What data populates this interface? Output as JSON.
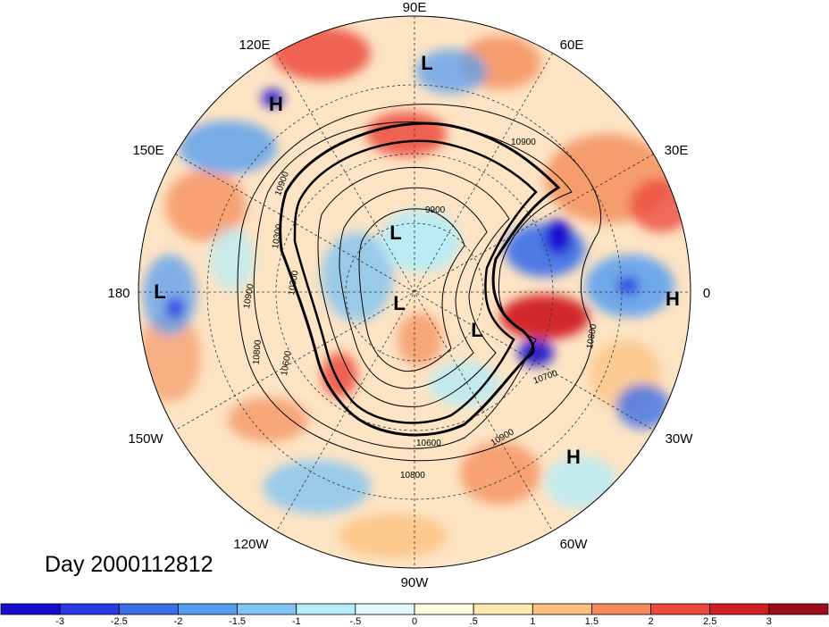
{
  "date_label": "Day 2000112812",
  "longitude_labels": [
    {
      "text": "90E",
      "lon": 90
    },
    {
      "text": "60E",
      "lon": 60
    },
    {
      "text": "30E",
      "lon": 30
    },
    {
      "text": "0",
      "lon": 0
    },
    {
      "text": "30W",
      "lon": -30
    },
    {
      "text": "60W",
      "lon": -60
    },
    {
      "text": "90W",
      "lon": -90
    },
    {
      "text": "120W",
      "lon": -120
    },
    {
      "text": "150W",
      "lon": -150
    },
    {
      "text": "180",
      "lon": 180
    },
    {
      "text": "150E",
      "lon": 150
    },
    {
      "text": "120E",
      "lon": 120
    }
  ],
  "pressure_centers": [
    {
      "type": "L",
      "text": "L",
      "where": "north Siberia"
    },
    {
      "type": "H",
      "text": "H",
      "where": "east Asia"
    },
    {
      "type": "L",
      "text": "L",
      "where": "dateline"
    },
    {
      "type": "L",
      "text": "L",
      "where": "east Siberian Arctic"
    },
    {
      "type": "L",
      "text": "L",
      "where": "pole"
    },
    {
      "type": "L",
      "text": "L",
      "where": "Greenland"
    },
    {
      "type": "H",
      "text": "H",
      "where": "west Africa"
    },
    {
      "type": "H",
      "text": "H",
      "where": "subtropical Atlantic"
    }
  ],
  "contour_labels": [
    "10900",
    "10900",
    "9900",
    "10300",
    "10300",
    "10900",
    "10800",
    "10600",
    "10600",
    "10800",
    "10900",
    "10800",
    "10700"
  ],
  "colorbar": {
    "colors": [
      "#1a0ccf",
      "#2a3ae6",
      "#3b6fe8",
      "#559ef0",
      "#7fc4f3",
      "#b4ecf8",
      "#e2fafd",
      "#fffbe0",
      "#fde9ad",
      "#fbc07d",
      "#f48b59",
      "#ec4a3d",
      "#d01f24",
      "#9e0b1b"
    ],
    "tick_labels": [
      "-3",
      "-2.5",
      "-2",
      "-1.5",
      "-1",
      "-.5",
      "0",
      ".5",
      "1",
      "1.5",
      "2",
      "2.5",
      "3"
    ]
  },
  "colors": {
    "strong_negative": "#1a0ccf",
    "negative": "#559ef0",
    "neutral": "#fffbe0",
    "positive": "#f48b59",
    "strong_positive": "#9e0b1b"
  }
}
